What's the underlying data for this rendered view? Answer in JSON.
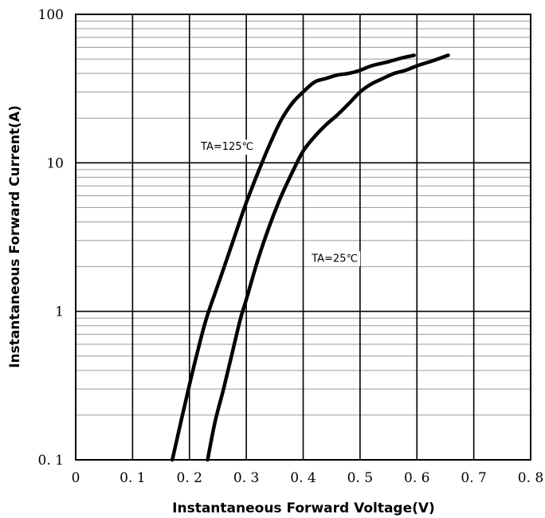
{
  "chart_data": {
    "type": "line",
    "xlabel": "Instantaneous Forward Voltage(V)",
    "ylabel": "Instantaneous Forward Current(A)",
    "xlim": [
      0,
      0.8
    ],
    "ylim": [
      0.1,
      100
    ],
    "yscale": "log",
    "grid": true,
    "x_ticks": [
      0,
      0.1,
      0.2,
      0.3,
      0.4,
      0.5,
      0.6,
      0.7,
      0.8
    ],
    "x_tick_labels": [
      "0",
      "0. 1",
      "0. 2",
      "0. 3",
      "0. 4",
      "0. 5",
      "0. 6",
      "0. 7",
      "0. 8"
    ],
    "y_ticks": [
      0.1,
      1,
      10,
      100
    ],
    "y_tick_labels": [
      "0. 1",
      "1",
      "10",
      "100"
    ],
    "series": [
      {
        "name": "",
        "x": [
          0.17,
          0.185,
          0.2,
          0.215,
          0.23,
          0.25,
          0.27,
          0.29,
          0.3,
          0.32,
          0.34,
          0.36,
          0.38,
          0.4,
          0.42,
          0.44,
          0.46,
          0.48,
          0.5,
          0.52,
          0.55,
          0.575,
          0.595
        ],
        "y": [
          0.1,
          0.18,
          0.32,
          0.55,
          0.9,
          1.5,
          2.5,
          4.2,
          5.4,
          8.5,
          13,
          19,
          25,
          30,
          35,
          37,
          39,
          40,
          42,
          45,
          48,
          51,
          53
        ]
      },
      {
        "name": "",
        "x": [
          0.232,
          0.245,
          0.26,
          0.275,
          0.29,
          0.3,
          0.32,
          0.34,
          0.36,
          0.38,
          0.4,
          0.42,
          0.44,
          0.46,
          0.48,
          0.5,
          0.52,
          0.54,
          0.56,
          0.58,
          0.6,
          0.63,
          0.655
        ],
        "y": [
          0.1,
          0.18,
          0.3,
          0.52,
          0.9,
          1.2,
          2.2,
          3.7,
          5.8,
          8.5,
          12,
          15,
          18,
          21,
          25,
          30,
          34,
          37,
          40,
          42,
          45,
          49,
          53
        ]
      }
    ],
    "annotations": [
      {
        "text": "TA=125℃",
        "x": 0.22,
        "y": 13
      },
      {
        "text": "TA=25℃",
        "x": 0.415,
        "y": 2.3
      }
    ]
  }
}
